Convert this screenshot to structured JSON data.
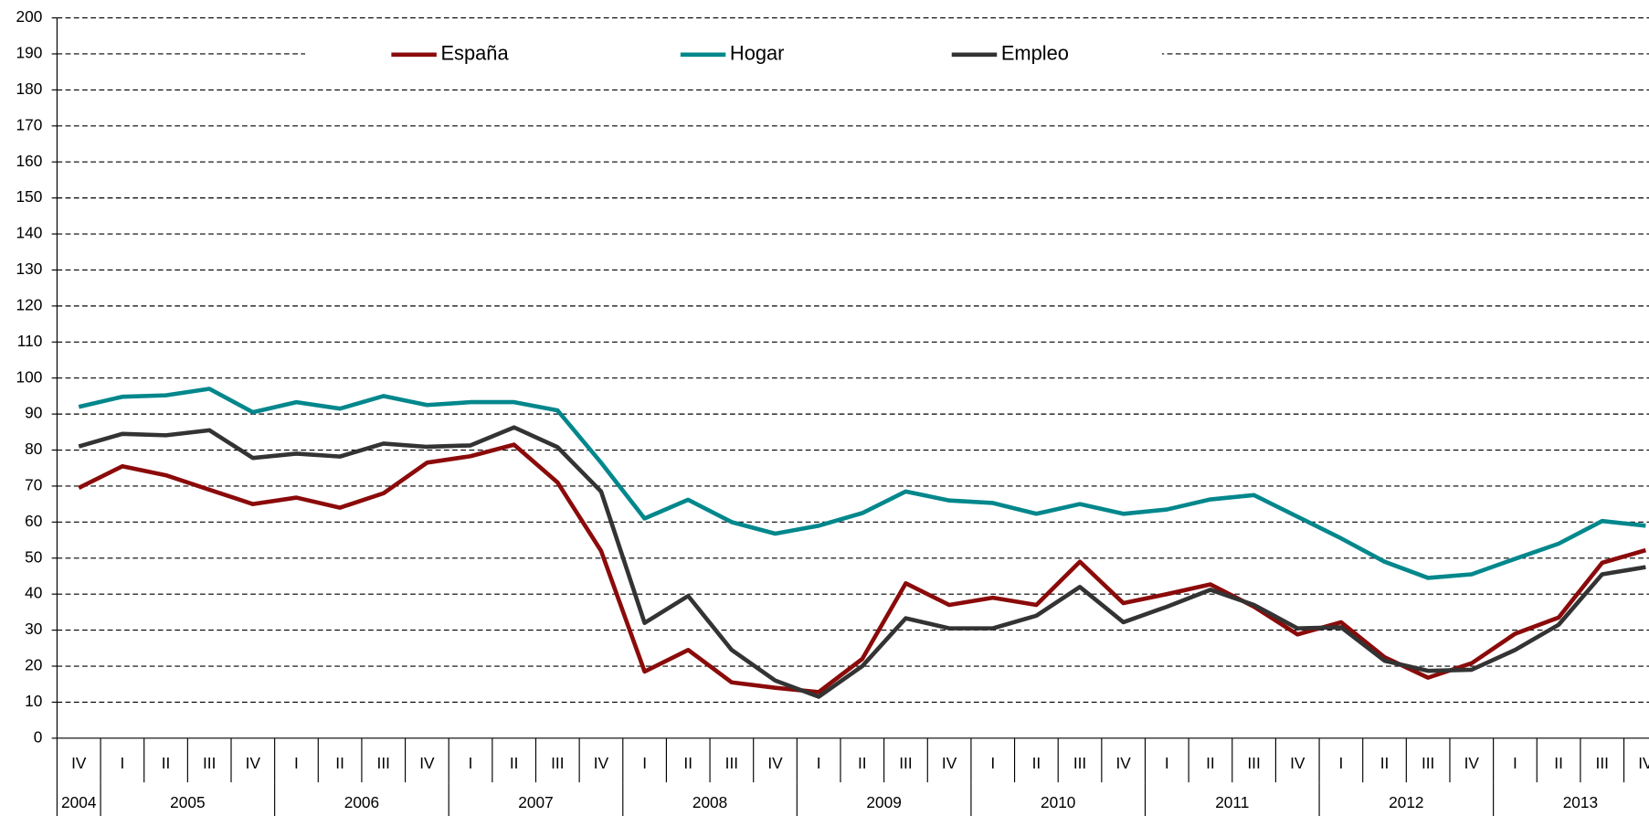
{
  "chart_data": {
    "type": "line",
    "categories": [
      "IV",
      "I",
      "II",
      "III",
      "IV",
      "I",
      "II",
      "III",
      "IV",
      "I",
      "II",
      "III",
      "IV",
      "I",
      "II",
      "III",
      "IV",
      "I",
      "II",
      "III",
      "IV",
      "I",
      "II",
      "III",
      "IV",
      "I",
      "II",
      "III",
      "IV",
      "I",
      "II",
      "III",
      "IV",
      "I",
      "II",
      "III",
      "IV"
    ],
    "year_groups": [
      {
        "label": "2004",
        "start": 0,
        "end": 0
      },
      {
        "label": "2005",
        "start": 1,
        "end": 4
      },
      {
        "label": "2006",
        "start": 5,
        "end": 8
      },
      {
        "label": "2007",
        "start": 9,
        "end": 12
      },
      {
        "label": "2008",
        "start": 13,
        "end": 16
      },
      {
        "label": "2009",
        "start": 17,
        "end": 20
      },
      {
        "label": "2010",
        "start": 21,
        "end": 24
      },
      {
        "label": "2011",
        "start": 25,
        "end": 28
      },
      {
        "label": "2012",
        "start": 29,
        "end": 32
      },
      {
        "label": "2013",
        "start": 33,
        "end": 36
      }
    ],
    "series": [
      {
        "name": "España",
        "color": "#8b0a0a",
        "values": [
          69.5,
          75.5,
          73,
          69,
          65,
          66.8,
          64,
          68,
          76.5,
          78.3,
          81.5,
          71,
          52,
          18.5,
          24.5,
          15.5,
          14,
          12.8,
          22,
          43,
          37,
          39,
          37,
          49,
          37.5,
          40,
          42.7,
          36.5,
          28.8,
          32.2,
          22.5,
          16.8,
          20.8,
          29,
          33.5,
          48.7,
          52.2
        ]
      },
      {
        "name": "Hogar",
        "color": "#00878c",
        "values": [
          92,
          94.8,
          95.2,
          97,
          90.5,
          93.3,
          91.5,
          95,
          92.5,
          93.3,
          93.3,
          91,
          76.5,
          61,
          66.2,
          60,
          56.8,
          59,
          62.5,
          68.5,
          66,
          65.3,
          62.3,
          65,
          62.3,
          63.5,
          66.3,
          67.5,
          61.5,
          55.5,
          49,
          44.5,
          45.5,
          49.8,
          54,
          60.3,
          59
        ]
      },
      {
        "name": "Empleo",
        "color": "#333333",
        "values": [
          81,
          84.5,
          84.1,
          85.5,
          77.8,
          79,
          78.2,
          81.8,
          80.9,
          81.3,
          86.3,
          80.8,
          68.5,
          32,
          39.5,
          24.5,
          16,
          11.5,
          20,
          33.3,
          30.5,
          30.5,
          34,
          42,
          32.2,
          36.5,
          41.2,
          37,
          30.5,
          30.8,
          21.5,
          18.7,
          19,
          24.5,
          31.5,
          45.5,
          47.5
        ]
      }
    ],
    "ylim": [
      0,
      200
    ],
    "yticks": [
      0,
      10,
      20,
      30,
      40,
      50,
      60,
      70,
      80,
      90,
      100,
      110,
      120,
      130,
      140,
      150,
      160,
      170,
      180,
      190,
      200
    ],
    "grid": true,
    "legend": "top"
  }
}
